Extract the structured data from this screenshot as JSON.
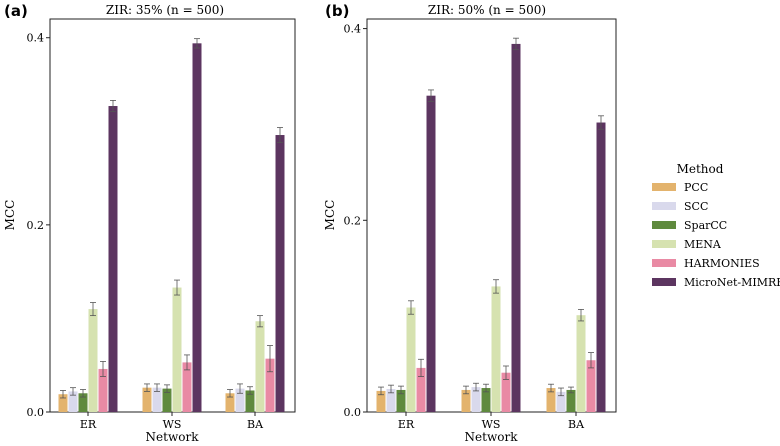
{
  "legend": {
    "title": "Method",
    "placement": "right",
    "items": [
      {
        "name": "PCC",
        "color": "#e3b36d"
      },
      {
        "name": "SCC",
        "color": "#d9d9ec"
      },
      {
        "name": "SparCC",
        "color": "#5f8a3e"
      },
      {
        "name": "MENA",
        "color": "#d6e2b0"
      },
      {
        "name": "HARMONIES",
        "color": "#e98aa4"
      },
      {
        "name": "MicroNet-MIMRF",
        "color": "#5c3560"
      }
    ]
  },
  "chart_data": [
    {
      "type": "bar",
      "panel_label": "(a)",
      "title": "ZIR: 35%  (n = 500)",
      "xlabel": "Network",
      "ylabel": "MCC",
      "ylim": [
        0,
        0.42
      ],
      "yticks": [
        "0.0",
        "0.2",
        "0.4"
      ],
      "ytick_values": [
        0,
        0.2,
        0.4
      ],
      "categories": [
        "ER",
        "WS",
        "BA"
      ],
      "series": [
        {
          "name": "PCC",
          "values": [
            0.019,
            0.026,
            0.02
          ],
          "errors": [
            0.004,
            0.004,
            0.004
          ]
        },
        {
          "name": "SCC",
          "values": [
            0.022,
            0.026,
            0.025
          ],
          "errors": [
            0.004,
            0.004,
            0.005
          ]
        },
        {
          "name": "SparCC",
          "values": [
            0.02,
            0.025,
            0.023
          ],
          "errors": [
            0.004,
            0.004,
            0.004
          ]
        },
        {
          "name": "MENA",
          "values": [
            0.11,
            0.133,
            0.097
          ],
          "errors": [
            0.007,
            0.008,
            0.006
          ]
        },
        {
          "name": "HARMONIES",
          "values": [
            0.046,
            0.053,
            0.057
          ],
          "errors": [
            0.008,
            0.008,
            0.014
          ]
        },
        {
          "name": "MicroNet-MIMRF",
          "values": [
            0.327,
            0.394,
            0.296
          ],
          "errors": [
            0.006,
            0.005,
            0.008
          ]
        }
      ]
    },
    {
      "type": "bar",
      "panel_label": "(b)",
      "title": "ZIR: 50%  (n = 500)",
      "xlabel": "Network",
      "ylabel": "MCC",
      "ylim": [
        0,
        0.41
      ],
      "yticks": [
        "0.0",
        "0.2",
        "0.4"
      ],
      "ytick_values": [
        0,
        0.2,
        0.4
      ],
      "categories": [
        "ER",
        "WS",
        "BA"
      ],
      "series": [
        {
          "name": "PCC",
          "values": [
            0.022,
            0.023,
            0.025
          ],
          "errors": [
            0.004,
            0.004,
            0.004
          ]
        },
        {
          "name": "SCC",
          "values": [
            0.024,
            0.026,
            0.021
          ],
          "errors": [
            0.004,
            0.004,
            0.004
          ]
        },
        {
          "name": "SparCC",
          "values": [
            0.023,
            0.025,
            0.023
          ],
          "errors": [
            0.004,
            0.004,
            0.003
          ]
        },
        {
          "name": "MENA",
          "values": [
            0.109,
            0.131,
            0.101
          ],
          "errors": [
            0.007,
            0.007,
            0.006
          ]
        },
        {
          "name": "HARMONIES",
          "values": [
            0.046,
            0.041,
            0.054
          ],
          "errors": [
            0.009,
            0.007,
            0.008
          ]
        },
        {
          "name": "MicroNet-MIMRF",
          "values": [
            0.33,
            0.384,
            0.302
          ],
          "errors": [
            0.006,
            0.006,
            0.007
          ]
        }
      ]
    }
  ]
}
